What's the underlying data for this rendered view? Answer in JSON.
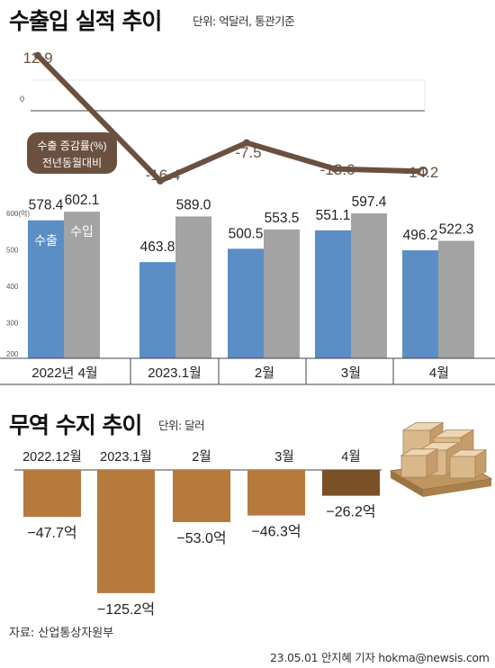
{
  "top_chart": {
    "title": "수출입 실적 추이",
    "unit_label": "단위: 억달러, 통관기준"
  },
  "bottom_chart": {
    "title": "무역 수지 추이",
    "unit_label": "단위: 달러"
  },
  "source": "자료: 산업통상자원부",
  "credit": "23.05.01  안지혜 기자  hokma@newsis.com",
  "colors": {
    "export": "#5b8ec4",
    "import": "#a3a3a3",
    "line": "#6b5040",
    "balance": "#b57a3c",
    "balance_latest": "#7a5026",
    "legend_box": "#6b5040",
    "band": "#ffffff"
  },
  "chart_data": [
    {
      "type": "line",
      "categories": [
        "2022년 4월",
        "2023.1월",
        "2월",
        "3월",
        "4월"
      ],
      "values": [
        12.9,
        -16.4,
        -7.5,
        -13.6,
        -14.2
      ],
      "value_labels": [
        "12.9",
        "-16.4",
        "-7.5",
        "-13.6",
        "-14.2"
      ],
      "legend_lines": [
        "수출 증감률(%)",
        "전년동월대비"
      ],
      "zero_label": "0"
    },
    {
      "type": "bar",
      "categories": [
        "2022년 4월",
        "2023.1월",
        "2월",
        "3월",
        "4월"
      ],
      "series": [
        {
          "name": "수출",
          "values": [
            578.4,
            463.8,
            500.5,
            551.1,
            496.2
          ],
          "labels": [
            "578.4",
            "463.8",
            "500.5",
            "551.1",
            "496.2"
          ]
        },
        {
          "name": "수입",
          "values": [
            602.1,
            589.0,
            553.5,
            597.4,
            522.3
          ],
          "labels": [
            "602.1",
            "589.0",
            "553.5",
            "597.4",
            "522.3"
          ]
        }
      ],
      "ylim": [
        200,
        600
      ],
      "yticks": [
        "200",
        "300",
        "400",
        "500",
        "600(억)"
      ]
    },
    {
      "type": "bar",
      "categories": [
        "2022.12월",
        "2023.1월",
        "2월",
        "3월",
        "4월"
      ],
      "values": [
        -47.7,
        -125.2,
        -53.0,
        -46.3,
        -26.2
      ],
      "value_labels": [
        "−47.7억",
        "−125.2억",
        "−53.0억",
        "−46.3억",
        "−26.2억"
      ]
    }
  ]
}
